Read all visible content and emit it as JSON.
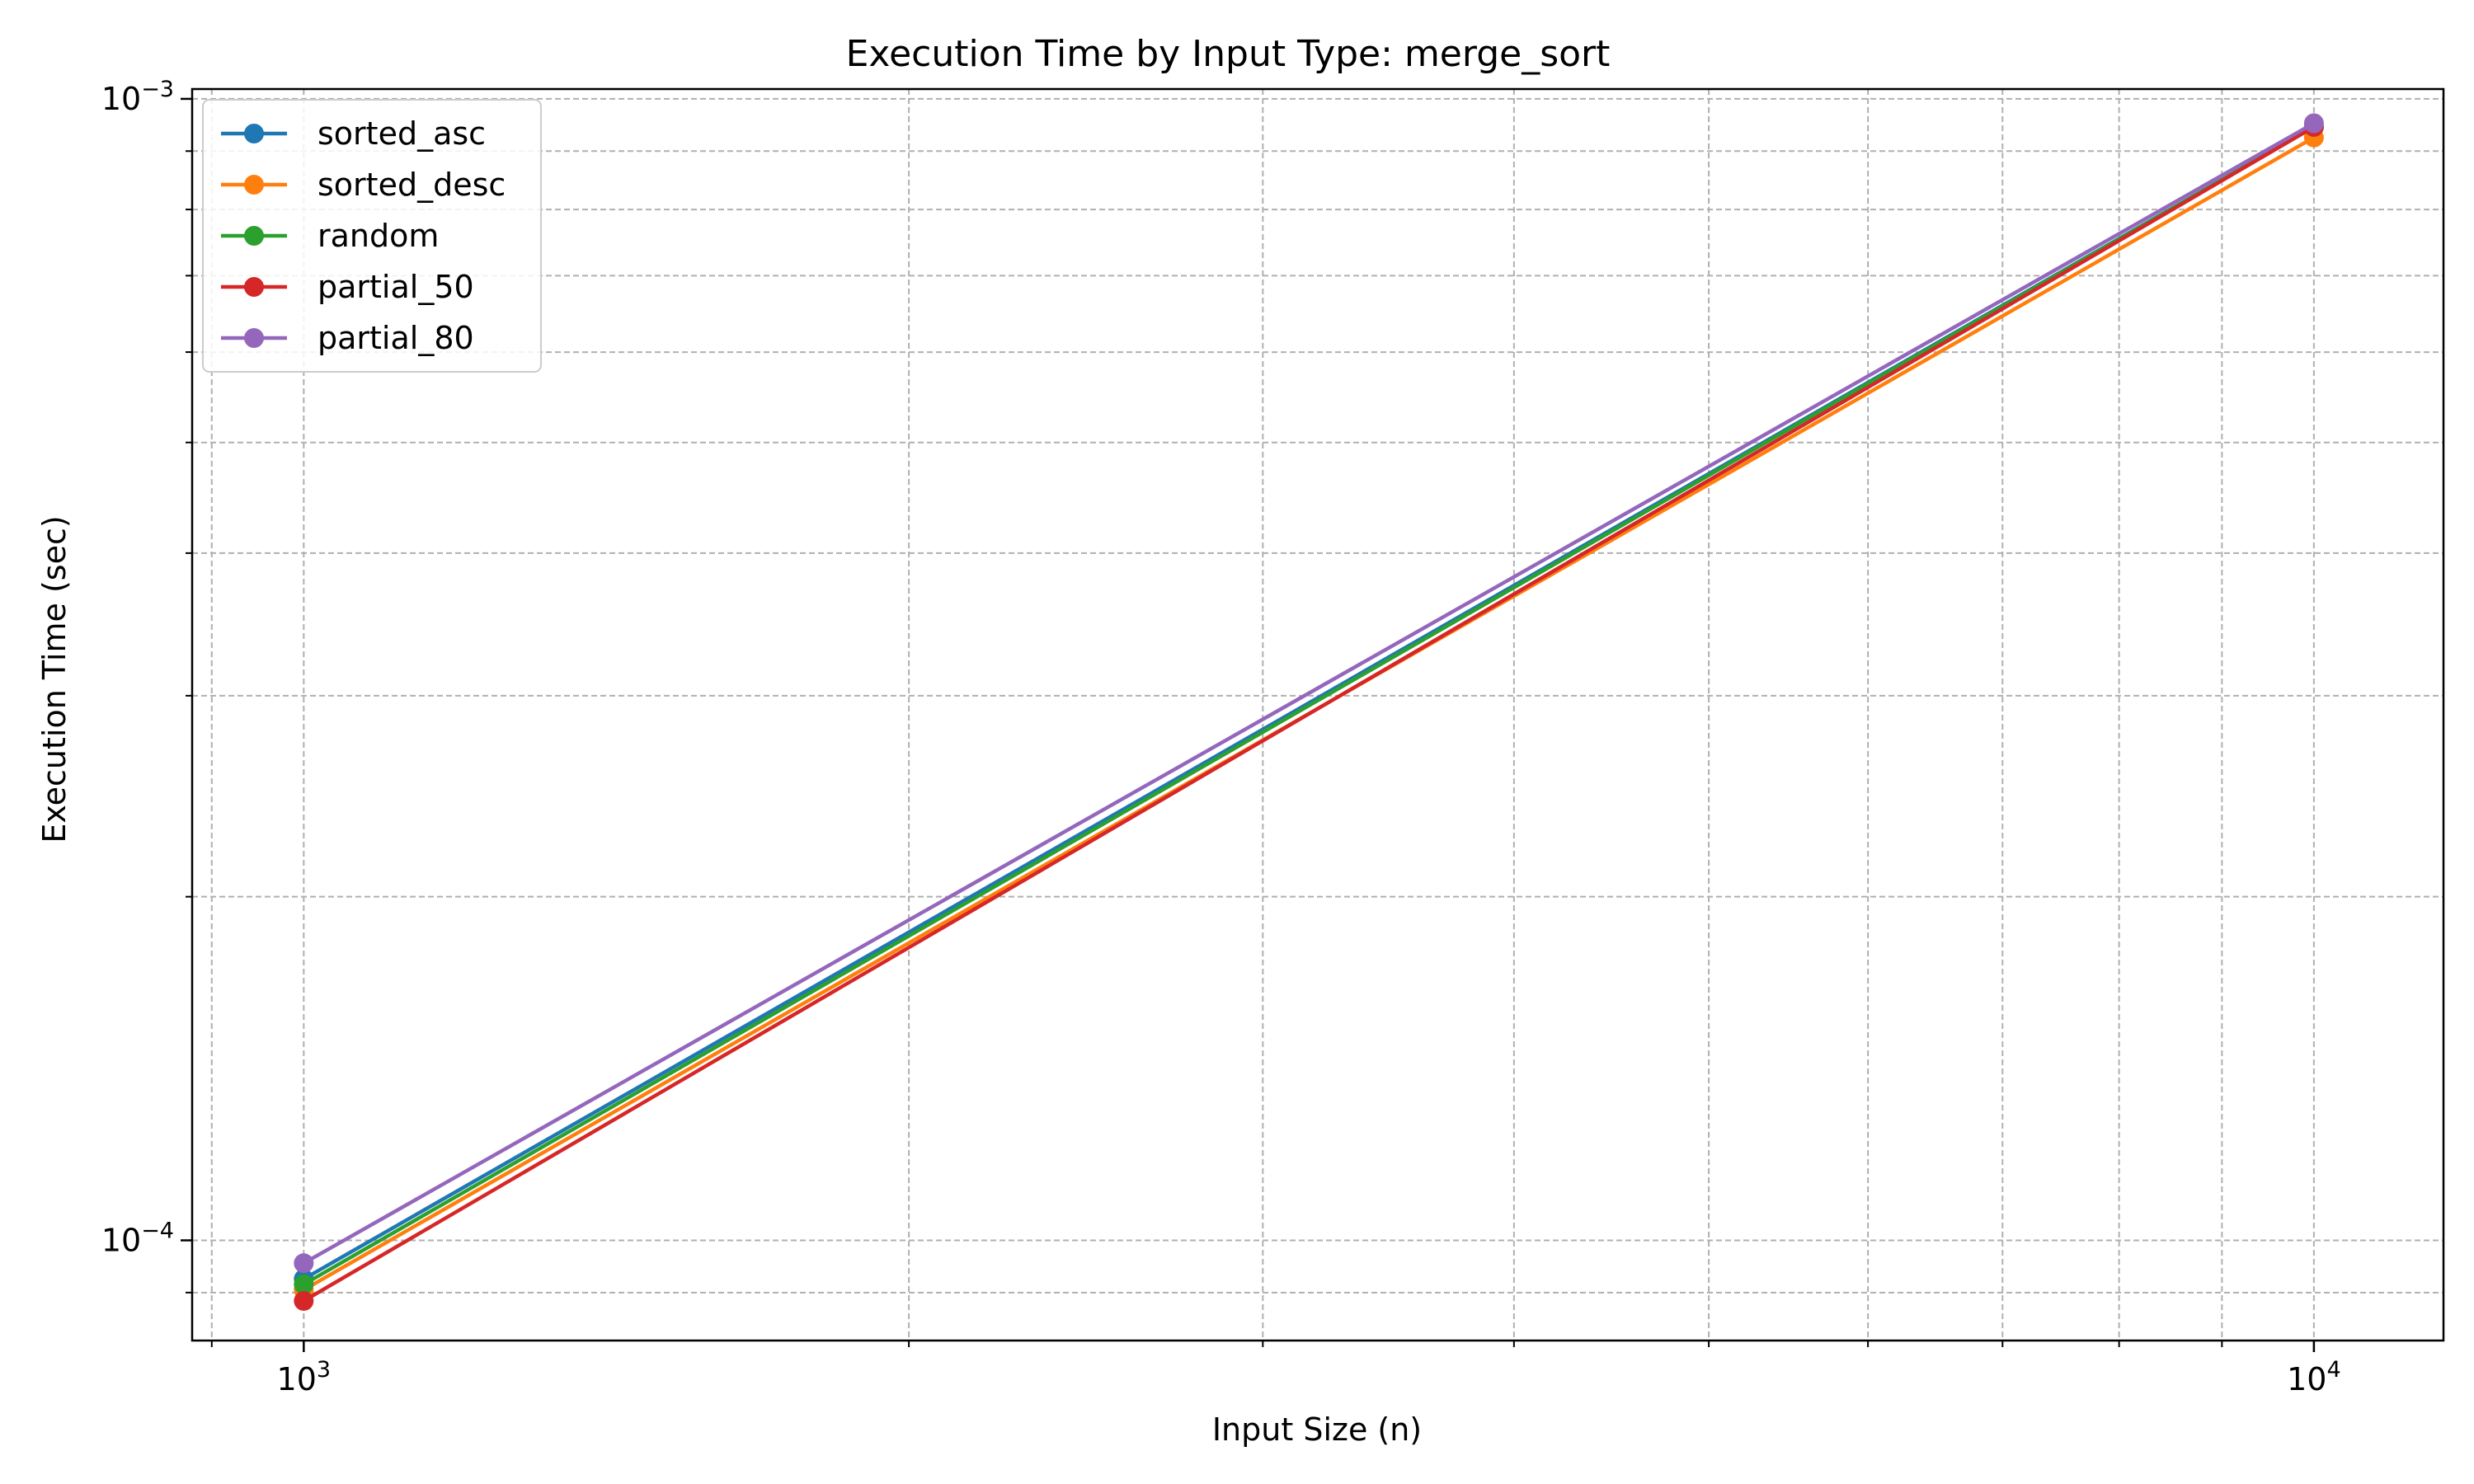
{
  "chart_data": {
    "type": "line",
    "title": "Execution Time by Input Type: merge_sort",
    "xlabel": "Input Size (n)",
    "ylabel": "Execution Time (sec)",
    "xscale": "log",
    "yscale": "log",
    "xlim": [
      880,
      11600
    ],
    "ylim": [
      8.17e-05,
      0.00102
    ],
    "xticks": [
      {
        "value": 1000,
        "base": "10",
        "exp": "3"
      },
      {
        "value": 10000,
        "base": "10",
        "exp": "4"
      }
    ],
    "yticks": [
      {
        "value": 0.0001,
        "base": "10",
        "exp": "−4"
      },
      {
        "value": 0.001,
        "base": "10",
        "exp": "−3"
      }
    ],
    "grid": true,
    "legend": "top-left",
    "x": [
      1000,
      10000
    ],
    "series": [
      {
        "name": "sorted_asc",
        "color": "#1f77b4",
        "values": [
          9.25e-05,
          0.000945
        ]
      },
      {
        "name": "sorted_desc",
        "color": "#ff7f0e",
        "values": [
          9.05e-05,
          0.000925
        ]
      },
      {
        "name": "random",
        "color": "#2ca02c",
        "values": [
          9.15e-05,
          0.000945
        ]
      },
      {
        "name": "partial_50",
        "color": "#d62728",
        "values": [
          8.85e-05,
          0.000945
        ]
      },
      {
        "name": "partial_80",
        "color": "#9467bd",
        "values": [
          9.55e-05,
          0.000952
        ]
      }
    ]
  }
}
